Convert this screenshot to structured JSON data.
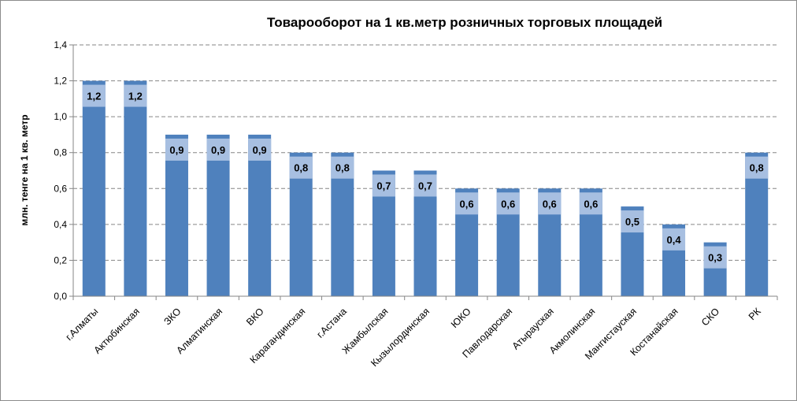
{
  "chart_data": {
    "type": "bar",
    "title": "Товарооборот на 1 кв.метр розничных торговых площадей",
    "xlabel": "",
    "ylabel": "млн. тенге на 1 кв. метр",
    "ylim": [
      0,
      1.4
    ],
    "yticks": [
      0,
      0.2,
      0.4,
      0.6,
      0.8,
      1.0,
      1.2,
      1.4
    ],
    "ytick_labels": [
      "0,0",
      "0,2",
      "0,4",
      "0,6",
      "0,8",
      "1,0",
      "1,2",
      "1,4"
    ],
    "grid": "horizontal dashed",
    "categories": [
      "г.Алматы",
      "Актюбинская",
      "ЗКО",
      "Алматинская",
      "ВКО",
      "Карагандинская",
      "г.Астана",
      "Жамбылская",
      "Кызылординская",
      "ЮКО",
      "Павлодарская",
      "Атырауская",
      "Акмолинская",
      "Мангистауская",
      "Костанайская",
      "СКО",
      "РК"
    ],
    "values": [
      1.2,
      1.2,
      0.9,
      0.9,
      0.9,
      0.8,
      0.8,
      0.7,
      0.7,
      0.6,
      0.6,
      0.6,
      0.6,
      0.5,
      0.4,
      0.3,
      0.8
    ],
    "data_labels": [
      "1,2",
      "1,2",
      "0,9",
      "0,9",
      "0,9",
      "0,8",
      "0,8",
      "0,7",
      "0,7",
      "0,6",
      "0,6",
      "0,6",
      "0,6",
      "0,5",
      "0,4",
      "0,3",
      "0,8"
    ],
    "colors": {
      "bar": "#4f81bd",
      "label_band": "#a7bfe1",
      "grid": "#868686",
      "axis": "#868686"
    }
  }
}
